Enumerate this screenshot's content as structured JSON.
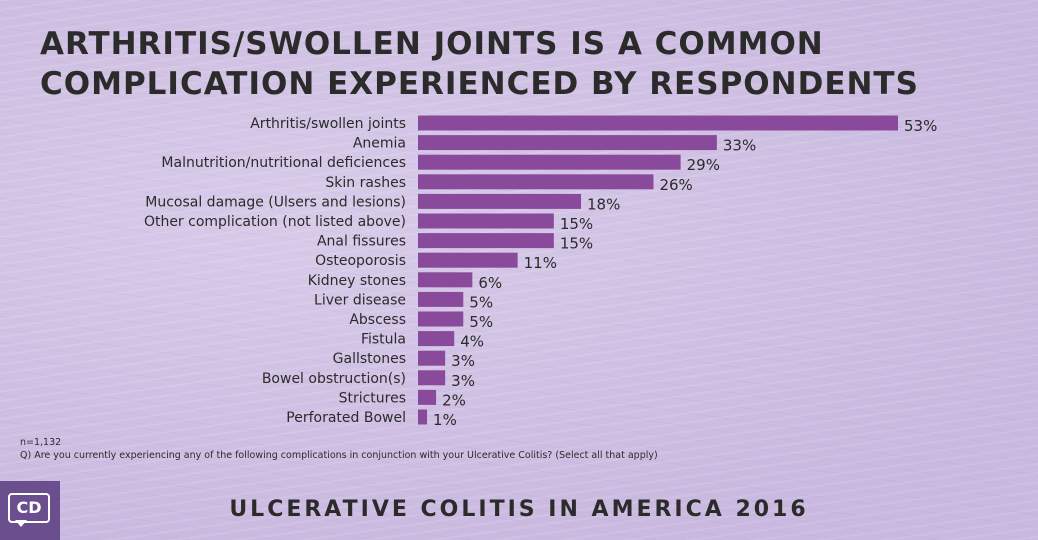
{
  "title": "Arthritis/swollen joints is a common complication experienced by respondents",
  "chart_data": {
    "type": "bar",
    "orientation": "horizontal",
    "title": "Arthritis/swollen joints is a common complication experienced by respondents",
    "categories": [
      "Arthritis/swollen joints",
      "Anemia",
      "Malnutrition/nutritional deficiences",
      "Skin rashes",
      "Mucosal damage (Ulsers and lesions)",
      "Other complication (not listed above)",
      "Anal fissures",
      "Osteoporosis",
      "Kidney stones",
      "Liver disease",
      "Abscess",
      "Fistula",
      "Gallstones",
      "Bowel obstruction(s)",
      "Strictures",
      "Perforated Bowel"
    ],
    "values": [
      53,
      33,
      29,
      26,
      18,
      15,
      15,
      11,
      6,
      5,
      5,
      4,
      3,
      3,
      2,
      1
    ],
    "value_labels": [
      "53%",
      "33%",
      "29%",
      "26%",
      "18%",
      "15%",
      "15%",
      "11%",
      "6%",
      "5%",
      "5%",
      "4%",
      "3%",
      "3%",
      "2%",
      "1%"
    ],
    "unit": "%",
    "xlim": [
      0,
      53
    ],
    "bar_color": "#8a4a9c",
    "grid": false,
    "legend": "none"
  },
  "notes": {
    "n": "n=1,132",
    "question": "Q) Are you currently experiencing any of the following complications in conjunction with your Ulcerative Colitis? (Select all that apply)"
  },
  "footer": "Ulcerative Colitis in America 2016",
  "logo": {
    "text": "CD",
    "background": "#6a4e8e"
  }
}
